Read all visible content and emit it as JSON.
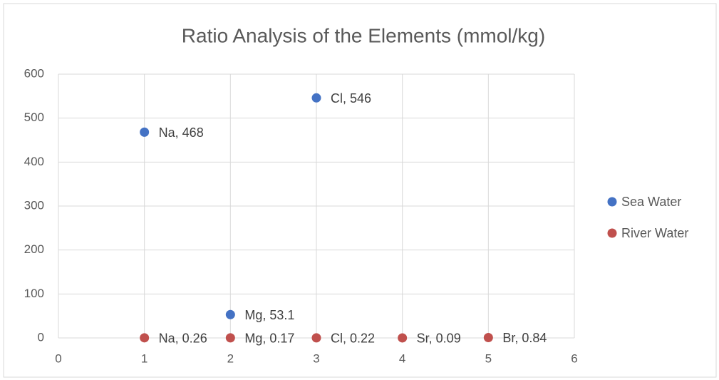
{
  "chart_data": {
    "type": "scatter",
    "title": "Ratio Analysis of the Elements (mmol/kg)",
    "xlim": [
      0,
      6
    ],
    "xticks": [
      0,
      1,
      2,
      3,
      4,
      5,
      6
    ],
    "ylim": [
      0,
      600
    ],
    "yticks": [
      0,
      100,
      200,
      300,
      400,
      500,
      600
    ],
    "grid": true,
    "legend": "right",
    "series": [
      {
        "name": "Sea Water",
        "color": "#4472c4",
        "x": [
          1,
          2,
          3
        ],
        "values": [
          468,
          53.1,
          546
        ],
        "labels": [
          "Na, 468",
          "Mg, 53.1",
          "Cl, 546"
        ]
      },
      {
        "name": "River Water",
        "color": "#c0504d",
        "x": [
          1,
          2,
          3,
          4,
          5
        ],
        "values": [
          0.26,
          0.17,
          0.22,
          0.09,
          0.84
        ],
        "labels": [
          "Na, 0.26",
          "Mg, 0.17",
          "Cl, 0.22",
          "Sr, 0.09",
          "Br, 0.84"
        ]
      }
    ]
  }
}
